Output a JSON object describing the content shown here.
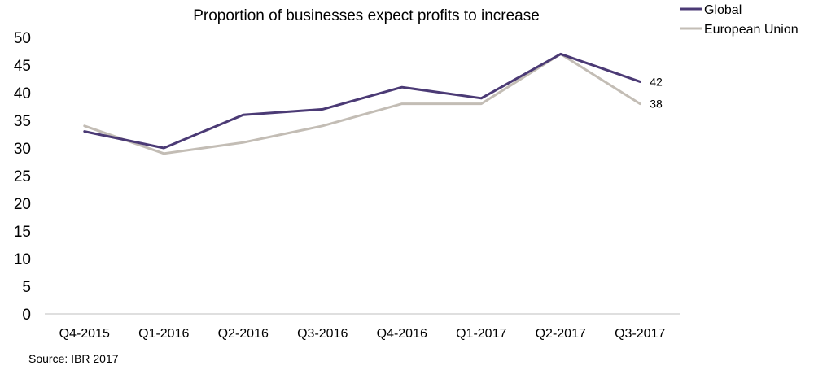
{
  "chart_data": {
    "type": "line",
    "title": "Proportion of businesses expect profits to increase",
    "xlabel": "",
    "ylabel": "",
    "categories": [
      "Q4-2015",
      "Q1-2016",
      "Q2-2016",
      "Q3-2016",
      "Q4-2016",
      "Q1-2017",
      "Q2-2017",
      "Q3-2017"
    ],
    "ylim": [
      0,
      50
    ],
    "yticks": [
      "0",
      "5",
      "10",
      "15",
      "20",
      "25",
      "30",
      "35",
      "40",
      "45",
      "50"
    ],
    "grid": false,
    "legend_position": "top-right",
    "series": [
      {
        "name": "Global",
        "color": "#4b3a75",
        "values": [
          33,
          30,
          36,
          37,
          41,
          39,
          47,
          42
        ],
        "end_label": "42"
      },
      {
        "name": "European Union",
        "color": "#c3bdb5",
        "values": [
          34,
          29,
          31,
          34,
          38,
          38,
          47,
          38
        ],
        "end_label": "38"
      }
    ]
  },
  "source": "Source: IBR 2017"
}
